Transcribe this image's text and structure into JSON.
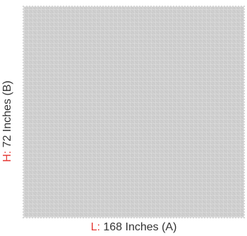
{
  "dimensions": {
    "height": {
      "prefix": "H:",
      "value": " 72 Inches (B)"
    },
    "length": {
      "prefix": "L:",
      "value": " 168 Inches (A)"
    }
  },
  "colors": {
    "swatch": "#cfcfcf",
    "prefix": "#e53935",
    "text": "#333333"
  }
}
